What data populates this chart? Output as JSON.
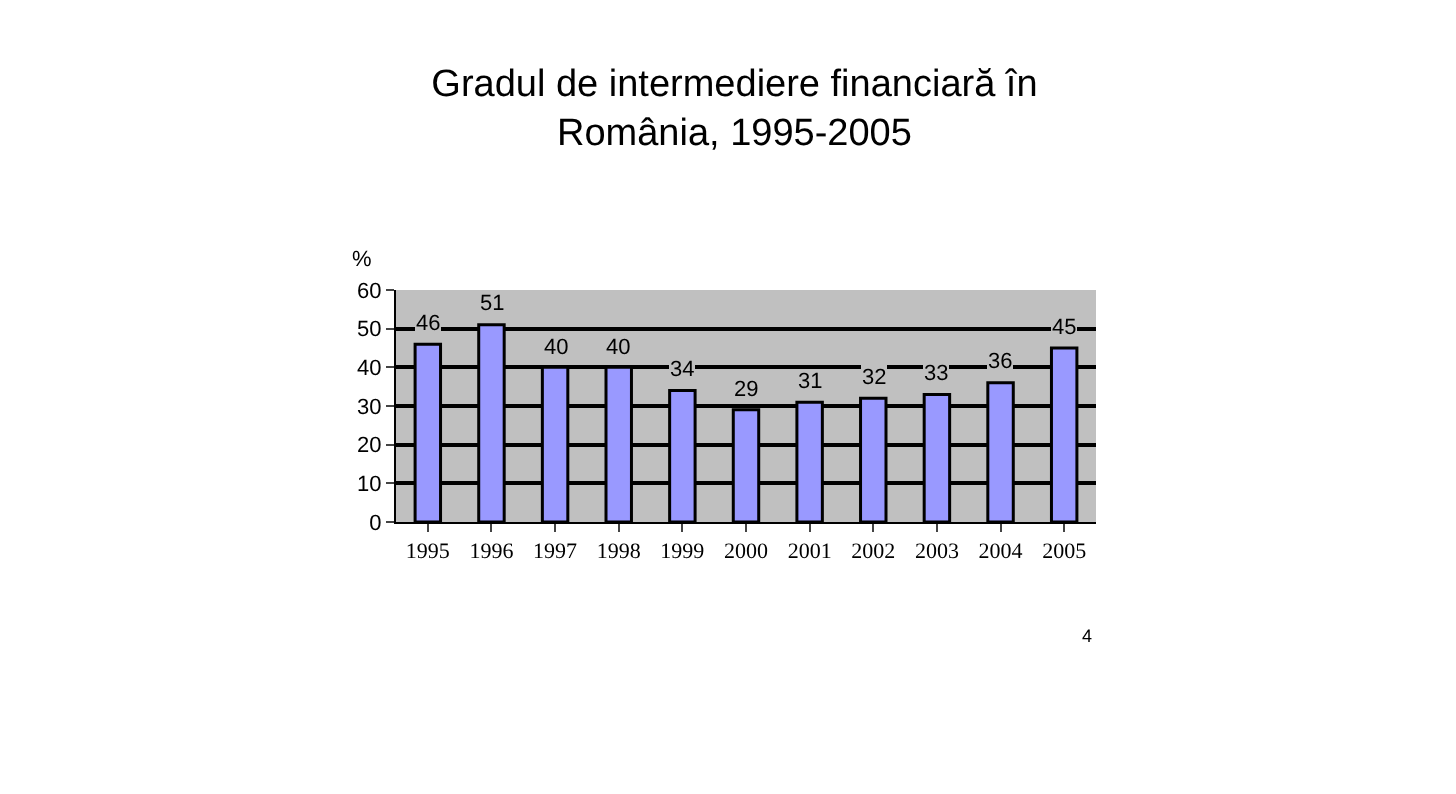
{
  "chart_data": {
    "type": "bar",
    "title": "Gradul de intermediere financiară în\nRomânia, 1995-2005",
    "ylabel": "%",
    "categories": [
      "1995",
      "1996",
      "1997",
      "1998",
      "1999",
      "2000",
      "2001",
      "2002",
      "2003",
      "2004",
      "2005"
    ],
    "values": [
      46,
      51,
      40,
      40,
      34,
      29,
      31,
      32,
      33,
      36,
      45
    ],
    "color": "#9999ff",
    "ylim": [
      0,
      60
    ],
    "yticks": [
      0,
      10,
      20,
      30,
      40,
      50,
      60
    ],
    "grid": "y",
    "data_labels": true,
    "legend": false,
    "annotations": [
      "4"
    ]
  }
}
